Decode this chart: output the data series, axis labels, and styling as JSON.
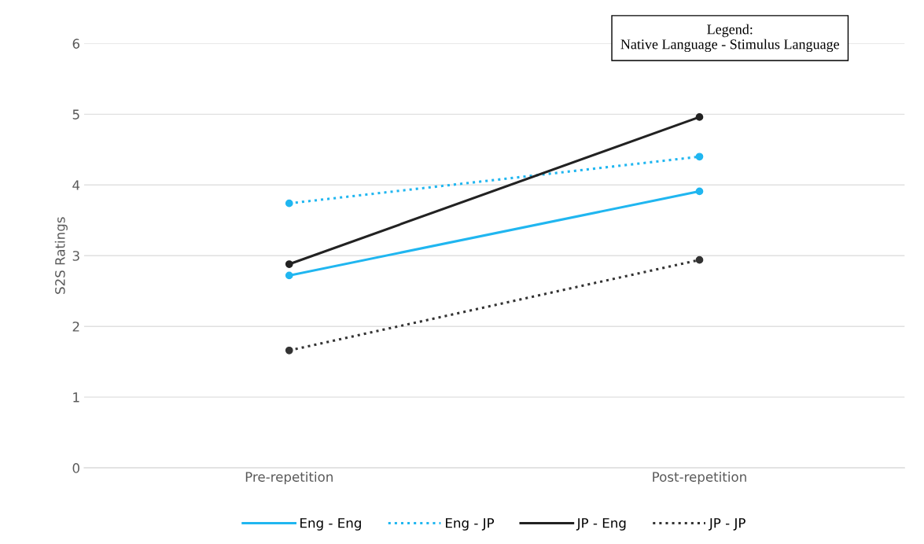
{
  "chart_data": {
    "type": "line",
    "ylabel": "S2S Ratings",
    "categories": [
      "Pre-repetition",
      "Post-repetition"
    ],
    "series": [
      {
        "name": "Eng - Eng",
        "color": "#20b6f0",
        "values": [
          2.72,
          3.91
        ],
        "line_style": "solid"
      },
      {
        "name": "Eng - JP",
        "color": "#20b6f0",
        "values": [
          3.74,
          4.4
        ],
        "line_style": "dotted"
      },
      {
        "name": "JP - Eng",
        "color": "#222222",
        "values": [
          2.88,
          4.96
        ],
        "line_style": "solid"
      },
      {
        "name": "JP - JP",
        "color": "#333333",
        "values": [
          1.66,
          2.94
        ],
        "line_style": "dotted"
      }
    ],
    "ylim": [
      0,
      6
    ],
    "yticks": [
      0,
      1,
      2,
      3,
      4,
      5,
      6
    ],
    "grid": "y",
    "legend": "bottom",
    "marker": "circle",
    "annotations": [
      "Legend:\nNative Language - Stimulus Language"
    ]
  }
}
